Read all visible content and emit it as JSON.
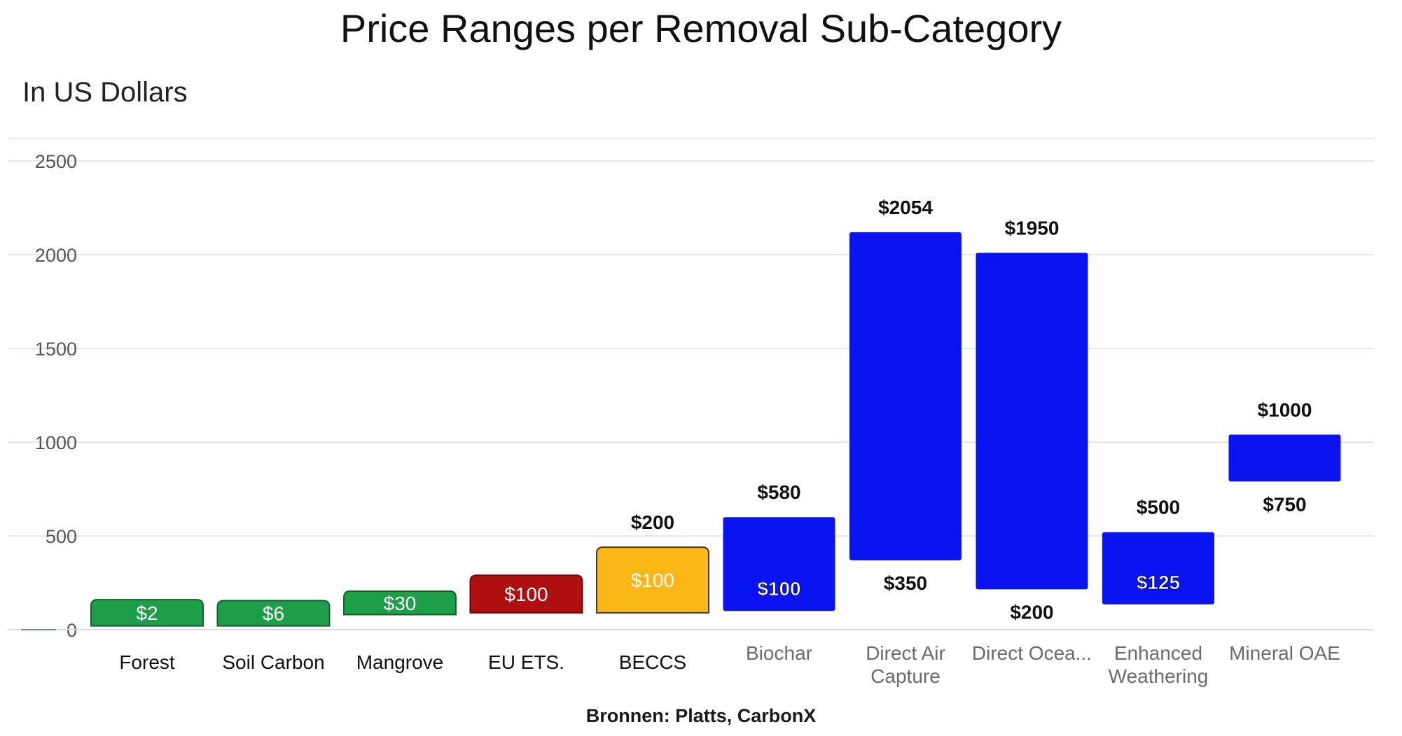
{
  "chart_data": {
    "type": "bar",
    "title": "Price Ranges per Removal Sub-Category",
    "subtitle": "In US Dollars",
    "source": "Bronnen: Platts, CarbonX",
    "ylim": [
      0,
      2500
    ],
    "yticks": [
      "2500",
      "2000",
      "1500",
      "1000",
      "500",
      "0"
    ],
    "grid": true,
    "categories": [
      {
        "label": "Forest",
        "label_lines": [
          "Forest"
        ],
        "low": 20,
        "high": 160,
        "inner_label": "$2",
        "top_label": "",
        "bottom_label": "",
        "color": "#1f9e4a",
        "border": "#155f2c",
        "inner_text_color": "#ffffff"
      },
      {
        "label": "Soil Carbon",
        "label_lines": [
          "Soil Carbon"
        ],
        "low": 20,
        "high": 155,
        "inner_label": "$6",
        "top_label": "",
        "bottom_label": "",
        "color": "#1f9e4a",
        "border": "#155f2c",
        "inner_text_color": "#ffffff"
      },
      {
        "label": "Mangrove",
        "label_lines": [
          "Mangrove"
        ],
        "low": 80,
        "high": 205,
        "inner_label": "$30",
        "top_label": "",
        "bottom_label": "",
        "color": "#1f9e4a",
        "border": "#155f2c",
        "inner_text_color": "#ffffff"
      },
      {
        "label": "EU ETS.",
        "label_lines": [
          "EU ETS."
        ],
        "low": 90,
        "high": 290,
        "inner_label": "$100",
        "top_label": "",
        "bottom_label": "",
        "color": "#b00f0f",
        "border": "#6e0909",
        "inner_text_color": "#ffffff"
      },
      {
        "label": "BECCS",
        "label_lines": [
          "BECCS"
        ],
        "low": 90,
        "high": 440,
        "inner_label": "$100",
        "top_label": "$200",
        "bottom_label": "",
        "color": "#fbb617",
        "border": "#3b3b3b",
        "inner_text_color": "#ffffff"
      },
      {
        "label": "Biochar",
        "label_lines": [
          "Biochar"
        ],
        "low": 100,
        "high": 600,
        "inner_label": "$100",
        "top_label": "$580",
        "bottom_label": "",
        "color": "#0a14f0",
        "border": "#0a14f0",
        "inner_text_color": "#ffffff"
      },
      {
        "label": "Direct Air Capture",
        "label_lines": [
          "Direct Air",
          "Capture"
        ],
        "low": 370,
        "high": 2120,
        "inner_label": "",
        "top_label": "$2054",
        "bottom_label": "$350",
        "color": "#0a14f0",
        "border": "#0a14f0",
        "inner_text_color": "#ffffff"
      },
      {
        "label": "Direct Ocea...",
        "label_lines": [
          "Direct Ocea..."
        ],
        "low": 215,
        "high": 2010,
        "inner_label": "",
        "top_label": "$1950",
        "bottom_label": "$200",
        "color": "#0a14f0",
        "border": "#0a14f0",
        "inner_text_color": "#ffffff"
      },
      {
        "label": "Enhanced Weathering",
        "label_lines": [
          "Enhanced",
          "Weathering"
        ],
        "low": 135,
        "high": 520,
        "inner_label": "$125",
        "top_label": "$500",
        "bottom_label": "",
        "color": "#0a14f0",
        "border": "#0a14f0",
        "inner_text_color": "#ffffff"
      },
      {
        "label": "Mineral OAE",
        "label_lines": [
          "Mineral OAE"
        ],
        "low": 790,
        "high": 1040,
        "inner_label": "",
        "top_label": "$1000",
        "bottom_label": "$750",
        "color": "#0a14f0",
        "border": "#0a14f0",
        "inner_text_color": "#ffffff"
      }
    ]
  }
}
